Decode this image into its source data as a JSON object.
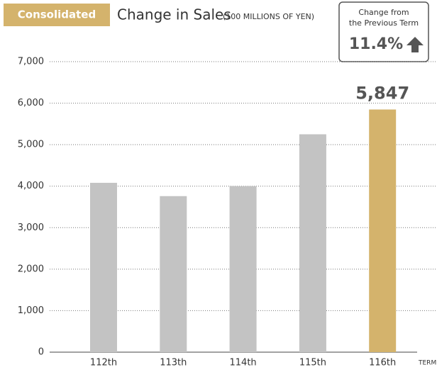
{
  "chart_data": {
    "type": "bar",
    "badge": "Consolidated",
    "title": "Change in Sales",
    "subtitle": "(100 MILLIONS OF YEN)",
    "callout": {
      "lines": [
        "Change from",
        "the Previous Term"
      ],
      "value": "11.4%"
    },
    "x_label": "TERM",
    "categories": [
      "112th",
      "113th",
      "114th",
      "115th",
      "116th"
    ],
    "values": [
      4080,
      3760,
      4000,
      5250,
      5847
    ],
    "value_labels": [
      null,
      null,
      null,
      null,
      "5,847"
    ],
    "colors": [
      "#c3c3c3",
      "#c3c3c3",
      "#c3c3c3",
      "#c3c3c3",
      "#d4b36c"
    ],
    "ylim": [
      0,
      7000
    ],
    "yticks": [
      0,
      {
        "value": 1000,
        "label": "1,000"
      },
      {
        "value": 2000,
        "label": "2,000"
      },
      {
        "value": 3000,
        "label": "3,000"
      },
      {
        "value": 4000,
        "label": "4,000"
      },
      {
        "value": 5000,
        "label": "5,000"
      },
      {
        "value": 6000,
        "label": "6,000"
      },
      {
        "value": 7000,
        "label": "7,000"
      }
    ],
    "grid": true
  }
}
